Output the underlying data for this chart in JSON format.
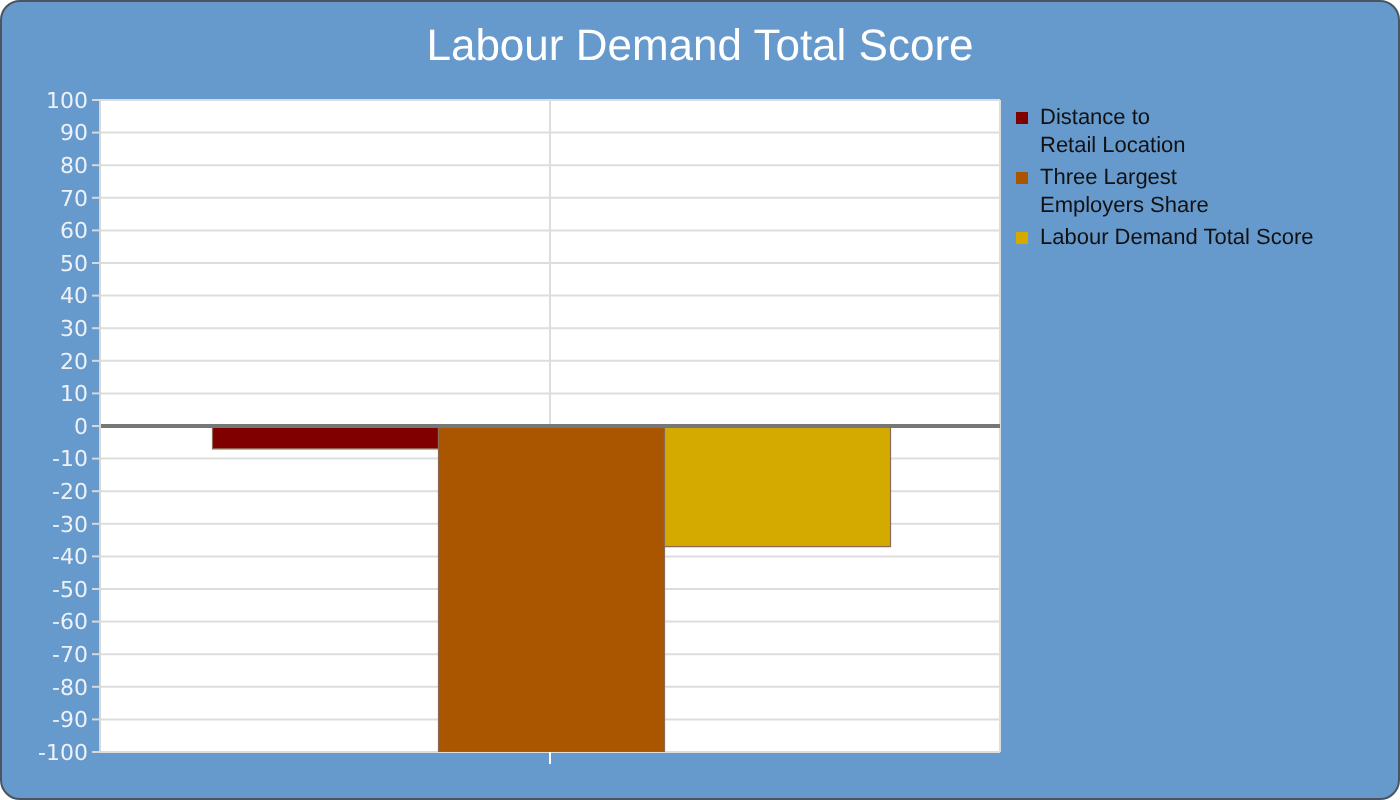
{
  "chart_data": {
    "type": "bar",
    "title": "Labour Demand Total Score",
    "categories": [
      null
    ],
    "series": [
      {
        "name": "Distance to\nRetail Location",
        "color": "#800000",
        "values": [
          -7
        ]
      },
      {
        "name": "Three Largest\nEmployers Share",
        "color": "#aa5500",
        "values": [
          -100
        ]
      },
      {
        "name": "Labour Demand Total Score",
        "color": "#d4aa00",
        "values": [
          -37
        ]
      }
    ],
    "ylim": [
      -100,
      100
    ],
    "yticks": [
      -100,
      -90,
      -80,
      -70,
      -60,
      -50,
      -40,
      -30,
      -20,
      -10,
      0,
      10,
      20,
      30,
      40,
      50,
      60,
      70,
      80,
      90,
      100
    ],
    "grid": true,
    "legend": "top right"
  }
}
